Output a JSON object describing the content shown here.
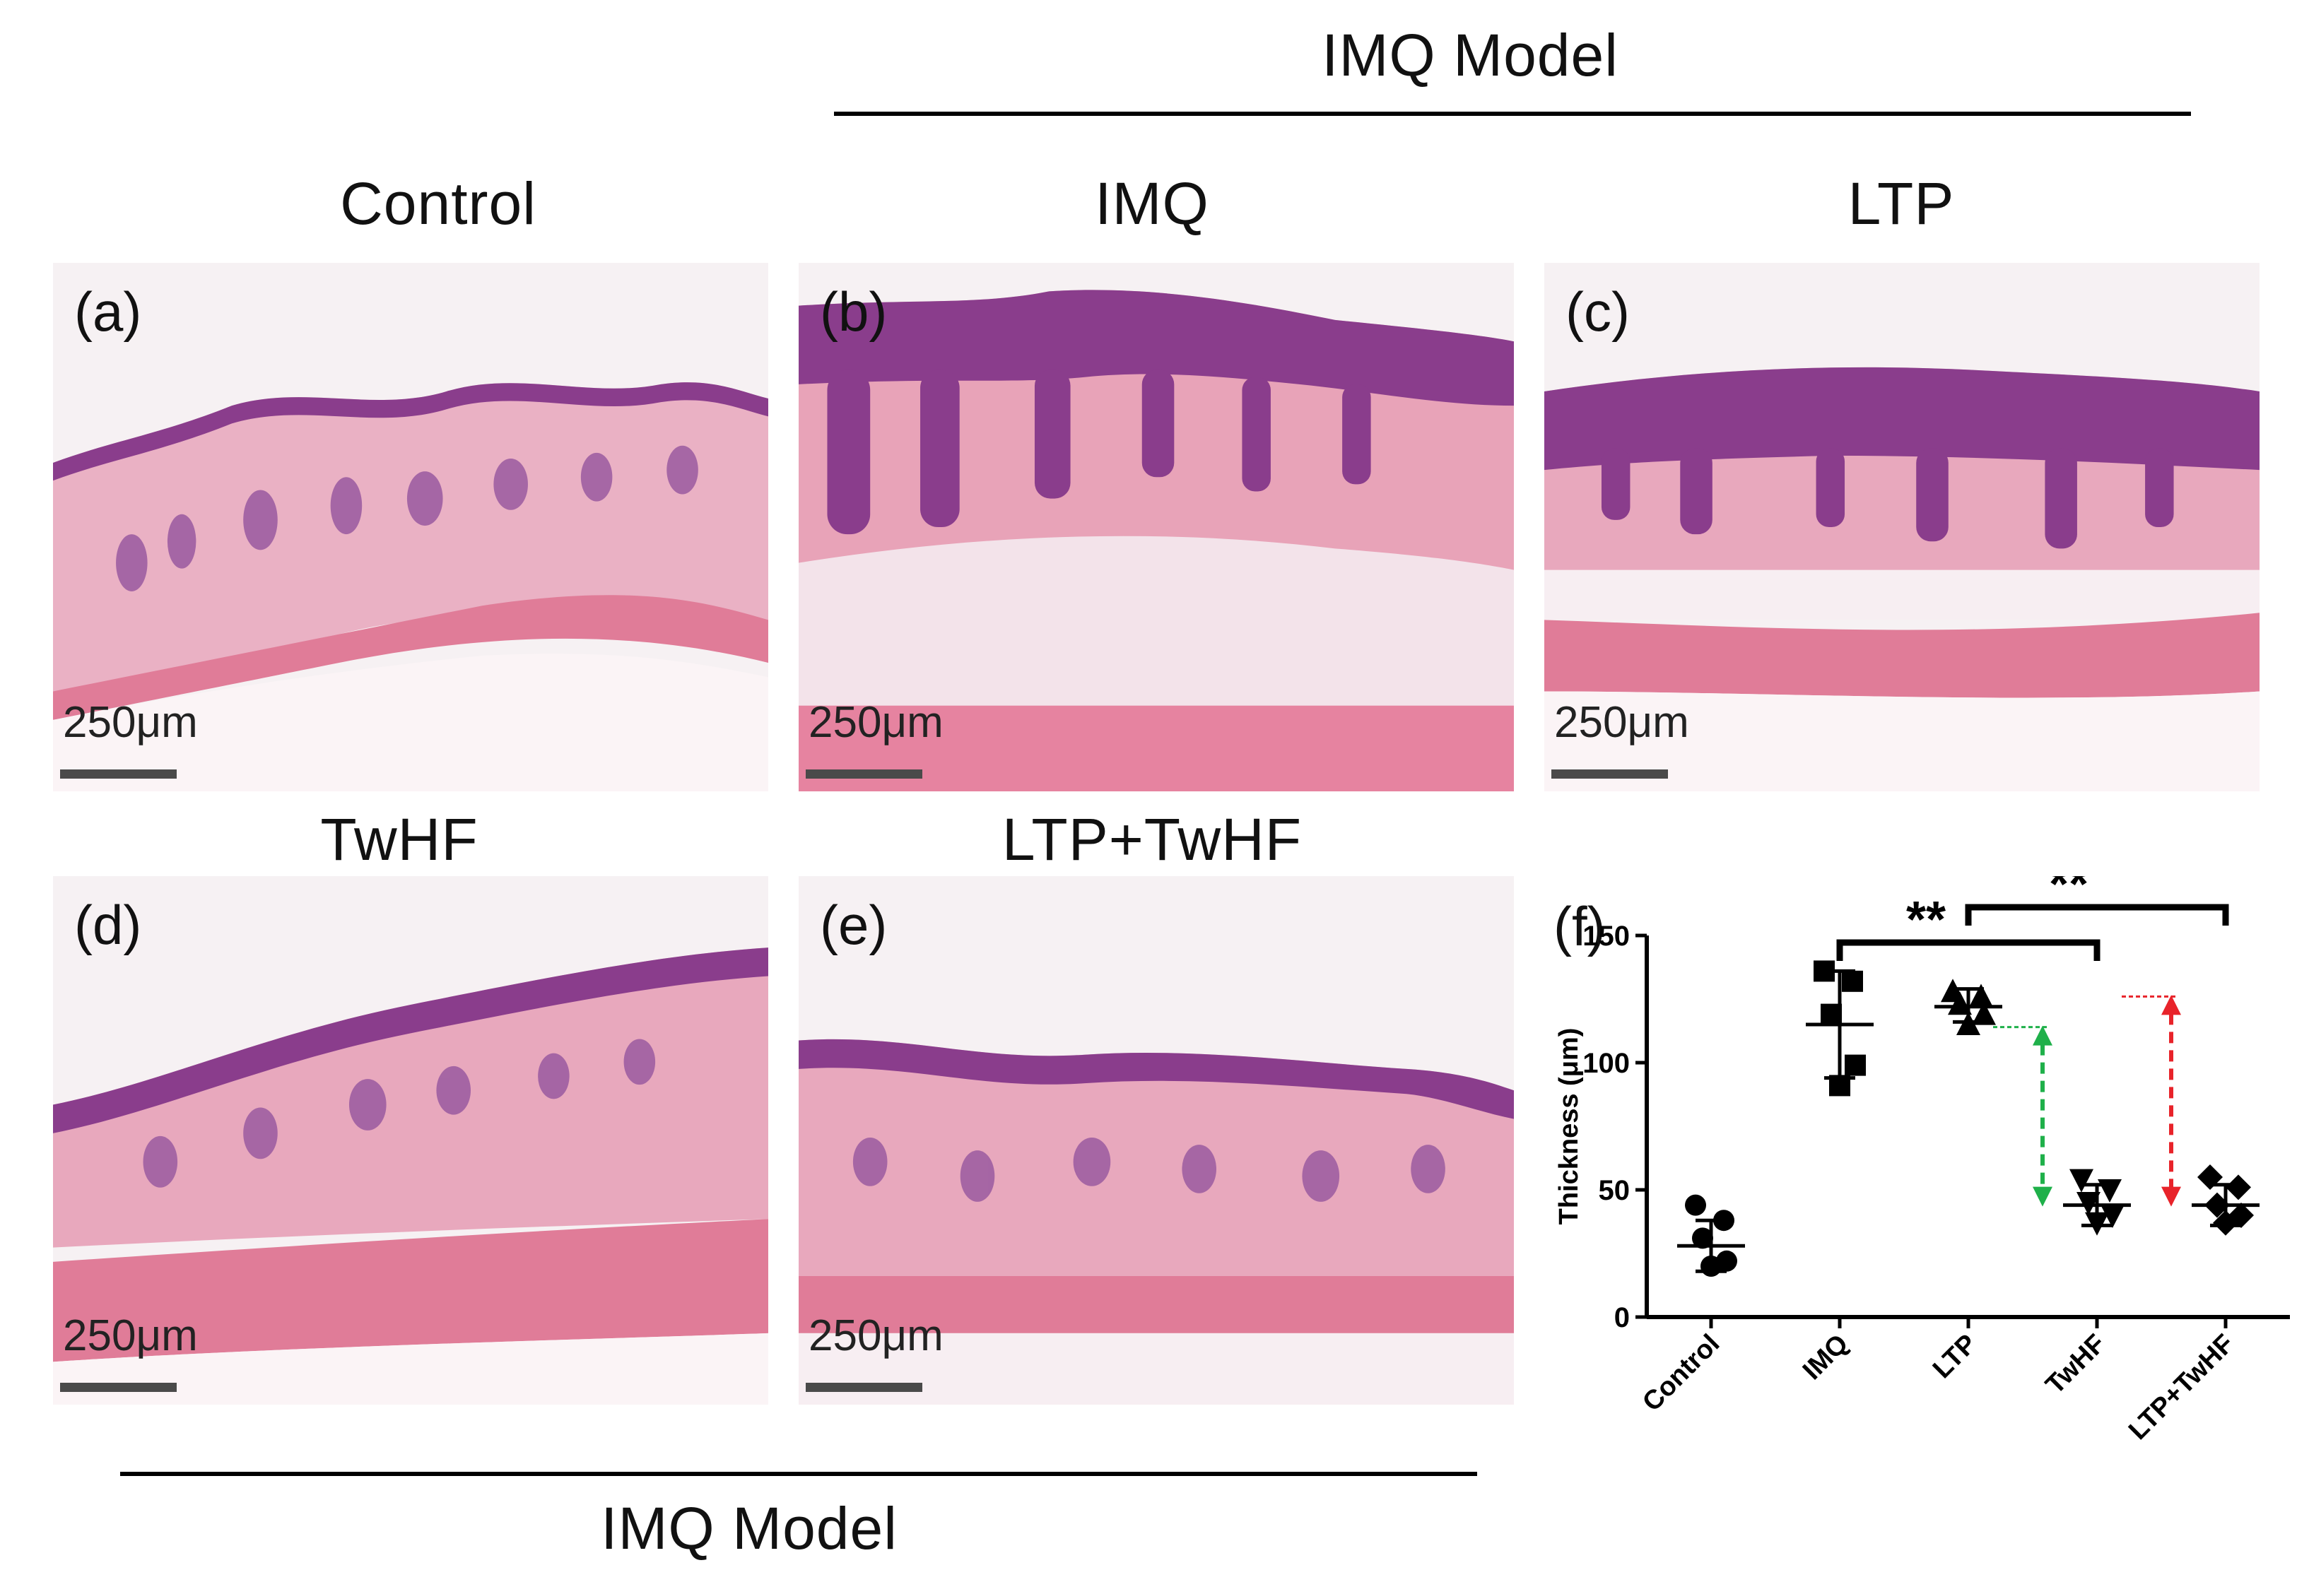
{
  "headings": {
    "top_model": "IMQ  Model",
    "bottom_model": "IMQ  Model",
    "control": "Control",
    "imq": "IMQ",
    "ltp": "LTP",
    "twhf": "TwHF",
    "ltp_twhf": "LTP+TwHF"
  },
  "panels": [
    {
      "label": "(a)",
      "scale": "250μm"
    },
    {
      "label": "(b)",
      "scale": "250μm"
    },
    {
      "label": "(c)",
      "scale": "250μm"
    },
    {
      "label": "(d)",
      "scale": "250μm"
    },
    {
      "label": "(e)",
      "scale": "250μm"
    },
    {
      "label": "(f)"
    }
  ],
  "colors": {
    "epidermis": "#8a3d8c",
    "dermis": "#e8a8bd",
    "muscle": "#e07c98",
    "fat": "#f7eef2",
    "green_arrow": "#1fb04a",
    "red_arrow": "#e8232a"
  },
  "chart_data": {
    "type": "scatter",
    "ylabel": "Thickness (μm)",
    "ylim": [
      0,
      150
    ],
    "yticks": [
      0,
      50,
      100,
      150
    ],
    "categories": [
      "Control",
      "IMQ",
      "LTP",
      "TwHF",
      "LTP+TwHF"
    ],
    "markers": [
      "circle",
      "square",
      "triangle-up",
      "triangle-down",
      "diamond"
    ],
    "points": [
      [
        44,
        38,
        31,
        22,
        20
      ],
      [
        136,
        132,
        119,
        99,
        91
      ],
      [
        128,
        126,
        123,
        119,
        115
      ],
      [
        54,
        50,
        45,
        40,
        37
      ],
      [
        55,
        51,
        44,
        40,
        37
      ]
    ],
    "means": [
      28,
      115,
      122,
      44,
      44
    ],
    "sd_upper": [
      38,
      136,
      129,
      52,
      52
    ],
    "sd_lower": [
      18,
      94,
      116,
      36,
      36
    ],
    "significance": [
      {
        "label": "**",
        "from": "IMQ",
        "to": "TwHF"
      },
      {
        "label": "**",
        "from": "LTP",
        "to": "LTP+TwHF"
      }
    ],
    "arrows": [
      {
        "color": "green",
        "from_value": 114,
        "to_value": 44,
        "at": "TwHF"
      },
      {
        "color": "red",
        "from_value": 126,
        "to_value": 44,
        "at": "LTP+TwHF"
      }
    ]
  }
}
